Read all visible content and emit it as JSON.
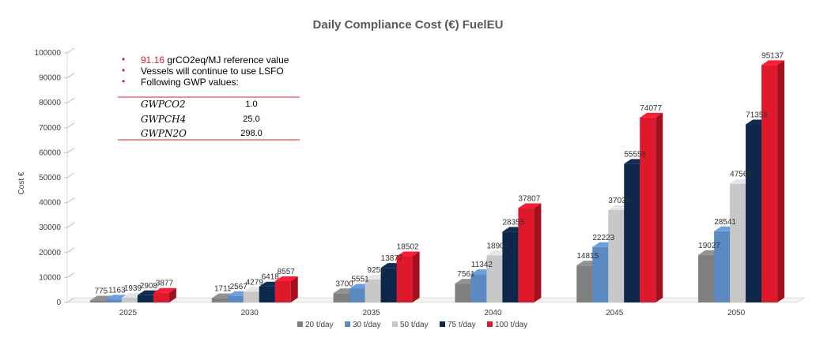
{
  "chart_data": {
    "type": "bar",
    "title": "Daily Compliance Cost (€) FuelEU",
    "ylabel": "Cost €",
    "xlabel": "",
    "ylim": [
      0,
      100000
    ],
    "yticks": [
      "0",
      "10000",
      "20000",
      "30000",
      "40000",
      "50000",
      "60000",
      "70000",
      "80000",
      "90000",
      "100000"
    ],
    "categories": [
      "2025",
      "2030",
      "2035",
      "2040",
      "2045",
      "2050"
    ],
    "series": [
      {
        "name": "20 t/day",
        "color": "#7f7f7f",
        "values": [
          775,
          1711,
          3700,
          7561,
          14815,
          19027
        ]
      },
      {
        "name": "30 t/day",
        "color": "#5b8ac3",
        "values": [
          1163,
          2567,
          5551,
          11342,
          22223,
          28541
        ]
      },
      {
        "name": "50 t/day",
        "color": "#c8c8c8",
        "values": [
          1939,
          4279,
          9251,
          18904,
          37038,
          47568
        ]
      },
      {
        "name": "75 t/day",
        "color": "#0c2749",
        "values": [
          2908,
          6418,
          13877,
          28355,
          55558,
          71353
        ]
      },
      {
        "name": "100 t/day",
        "color": "#e0182c",
        "values": [
          3877,
          8557,
          18502,
          37807,
          74077,
          95137
        ]
      }
    ],
    "data_labels": [
      [
        "775",
        "1163",
        "1939",
        "2908",
        "3877"
      ],
      [
        "1711",
        "2567",
        "4279",
        "6418",
        "8557"
      ],
      [
        "3700",
        "5551",
        "9251",
        "13877",
        "18502"
      ],
      [
        "7561",
        "11342",
        "18904",
        "28355",
        "37807"
      ],
      [
        "14815",
        "22223",
        "37038",
        "55558",
        "74077"
      ],
      [
        "19027",
        "28541",
        "47568",
        "71353",
        "95137"
      ]
    ],
    "legend_position": "bottom",
    "grid": false
  },
  "notes": {
    "line1_value": "91.16",
    "line1_text": " grCO2eq/MJ reference value",
    "line2": "Vessels will  continue to use LSFO",
    "line3": "Following  GWP values:",
    "bullet": "•"
  },
  "gwp_table": [
    {
      "name": "GWPCO2",
      "value": "1.0"
    },
    {
      "name": "GWPCH4",
      "value": "25.0"
    },
    {
      "name": "GWPN2O",
      "value": "298.0"
    }
  ],
  "colors": {
    "table_rule": "#d0202e",
    "axis": "#bfbfbf",
    "highlight_text": "#d0202e"
  }
}
